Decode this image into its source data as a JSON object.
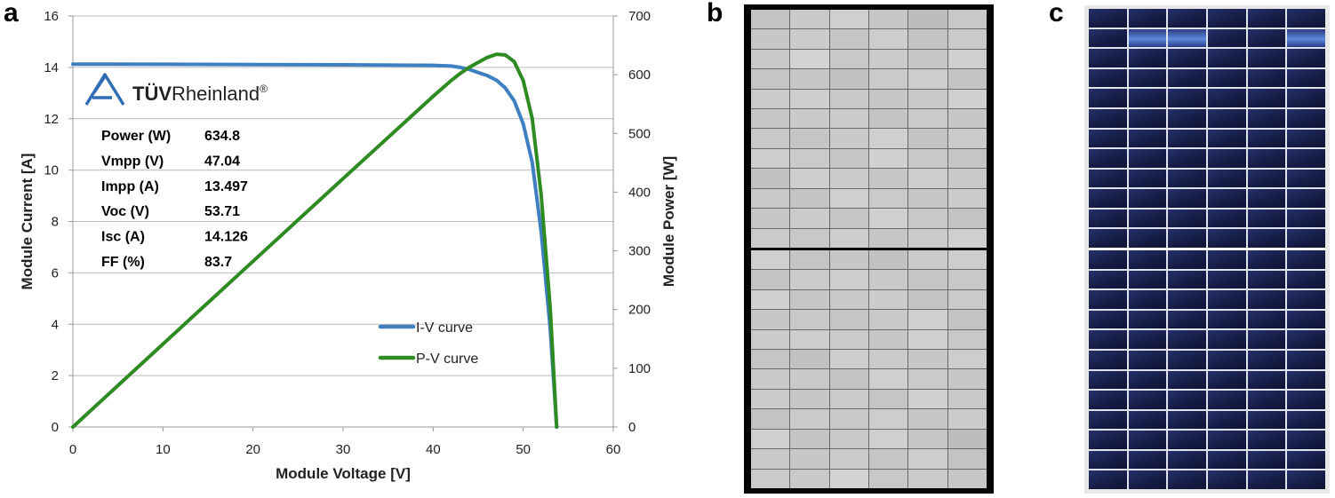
{
  "panels": {
    "a_label": "a",
    "b_label": "b",
    "c_label": "c"
  },
  "chart_data": {
    "type": "line",
    "xlabel": "Module Voltage [V]",
    "ylabel": "Module Current [A]",
    "y2label": "Module Power [W]",
    "xlim": [
      0,
      60
    ],
    "ylim": [
      0,
      16
    ],
    "y2lim": [
      0,
      700
    ],
    "x_ticks": [
      0,
      10,
      20,
      30,
      40,
      50,
      60
    ],
    "y_ticks": [
      0,
      2,
      4,
      6,
      8,
      10,
      12,
      14,
      16
    ],
    "y2_ticks": [
      0,
      100,
      200,
      300,
      400,
      500,
      600,
      700
    ],
    "grid": "horizontal",
    "series": [
      {
        "name": "I-V curve",
        "axis": "left",
        "color": "#3d7fc1",
        "x": [
          0,
          10,
          20,
          30,
          40,
          42,
          43,
          44,
          45,
          46,
          47.04,
          48,
          49,
          50,
          51,
          52,
          53,
          53.71
        ],
        "y": [
          14.126,
          14.12,
          14.11,
          14.1,
          14.08,
          14.05,
          14.0,
          13.92,
          13.8,
          13.68,
          13.497,
          13.2,
          12.7,
          11.8,
          10.3,
          7.6,
          3.8,
          0
        ]
      },
      {
        "name": "P-V curve",
        "axis": "right",
        "color": "#2e8b22",
        "x": [
          0,
          10,
          20,
          30,
          40,
          42,
          43,
          44,
          45,
          46,
          47.04,
          48,
          49,
          50,
          51,
          52,
          53,
          53.71
        ],
        "y": [
          0,
          141.2,
          282.2,
          423.0,
          563.2,
          590.1,
          602.0,
          612.5,
          621.0,
          629.3,
          634.8,
          633.6,
          622.3,
          590.0,
          525.3,
          395.2,
          201.4,
          0
        ]
      }
    ],
    "legend": {
      "placement": "center-right",
      "entries": [
        "I-V curve",
        "P-V curve"
      ]
    },
    "logo": {
      "text_bold": "TÜV",
      "text_regular": "Rheinland",
      "mark": "®"
    },
    "parameters": [
      {
        "label": "Power (W)",
        "value": "634.8"
      },
      {
        "label": "Vmpp (V)",
        "value": "47.04"
      },
      {
        "label": "Impp (A)",
        "value": "13.497"
      },
      {
        "label": "Voc (V)",
        "value": "53.71"
      },
      {
        "label": "Isc (A)",
        "value": "14.126"
      },
      {
        "label": "FF (%)",
        "value": "83.7"
      }
    ]
  },
  "el_image": {
    "grid_cols": 6,
    "rows_per_half": 12,
    "cell_shades": [
      "#c4c4c4",
      "#c9c9c9",
      "#cfcfcf",
      "#c6c6c6",
      "#bdbdbd",
      "#c8c8c8",
      "#c7c7c7",
      "#cccccc",
      "#c5c5c5",
      "#cdcdcd",
      "#c3c3c3",
      "#cacaca",
      "#c9c9c9",
      "#d3d3d3",
      "#c8c8c8",
      "#cbcbcb",
      "#c6c6c6",
      "#cfcfcf",
      "#c5c5c5",
      "#c7c7c7",
      "#c2c2c2",
      "#cacaca",
      "#cdcdcd",
      "#c4c4c4",
      "#cbcbcb",
      "#cecece",
      "#c9c9c9",
      "#c6c6c6",
      "#c8c8c8",
      "#d0d0d0",
      "#c6c6c6",
      "#c9c9c9",
      "#cccccc",
      "#c4c4c4",
      "#cacaca",
      "#c7c7c7",
      "#c8c8c8",
      "#c5c5c5",
      "#c9c9c9",
      "#cfcfcf",
      "#c3c3c3",
      "#cbcbcb",
      "#cdcdcd",
      "#cacaca",
      "#c6c6c6",
      "#d1d1d1",
      "#c8c8c8",
      "#c5c5c5",
      "#c1c1c1",
      "#cecece",
      "#cbcbcb",
      "#c7c7c7",
      "#cdcdcd",
      "#c9c9c9",
      "#c9c9c9",
      "#c4c4c4",
      "#cfcfcf",
      "#cacaca",
      "#c6c6c6",
      "#cccccc",
      "#c7c7c7",
      "#cbcbcb",
      "#c5c5c5",
      "#d0d0d0",
      "#c9c9c9",
      "#c3c3c3",
      "#cacaca",
      "#c8c8c8",
      "#cdcdcd",
      "#c6c6c6",
      "#cbcbcb",
      "#cfcfcf"
    ]
  },
  "photo": {
    "grid_cols": 6,
    "rows_per_half": 12
  }
}
